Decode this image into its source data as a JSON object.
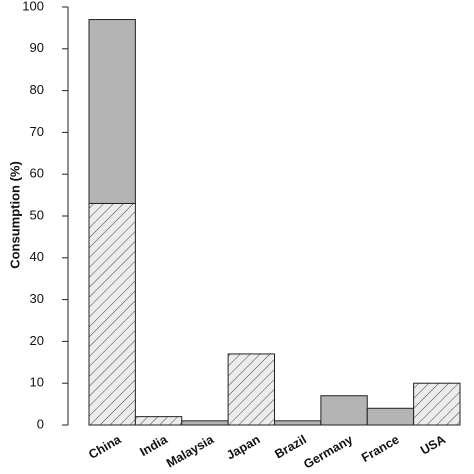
{
  "chart_data": {
    "type": "bar",
    "stacked": true,
    "y_label": "Consumption (%)",
    "categories": [
      "China",
      "India",
      "Malaysia",
      "Japan",
      "Brazil",
      "Germany",
      "France",
      "USA"
    ],
    "series": [
      {
        "color": "#dcdcdc",
        "hatch": true,
        "values": [
          53,
          2,
          null,
          17,
          null,
          null,
          null,
          10
        ]
      },
      {
        "color": "#b4b4b4",
        "hatch": false,
        "values": [
          44,
          null,
          1,
          null,
          1,
          7,
          4,
          null
        ]
      }
    ],
    "ylim": [
      0,
      100
    ],
    "yticks": [
      0,
      10,
      20,
      30,
      40,
      50,
      60,
      70,
      80,
      90,
      100
    ]
  }
}
